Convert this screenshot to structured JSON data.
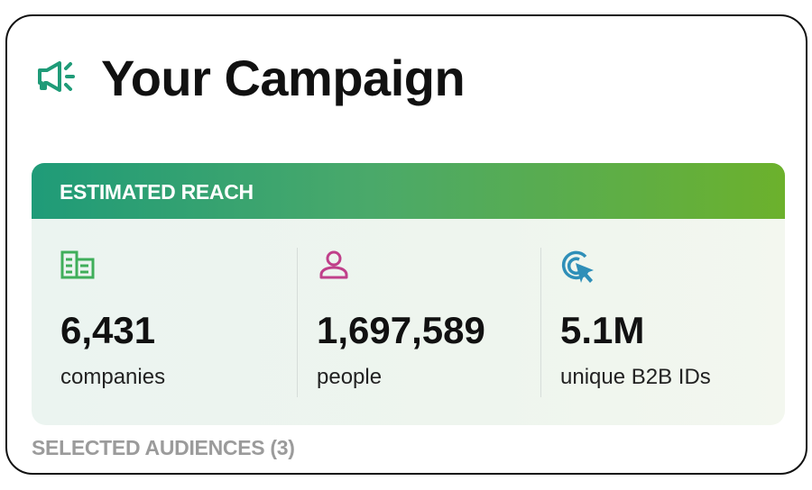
{
  "header": {
    "title": "Your Campaign"
  },
  "reach": {
    "heading": "ESTIMATED REACH",
    "stats": [
      {
        "value": "6,431",
        "label": "companies"
      },
      {
        "value": "1,697,589",
        "label": "people"
      },
      {
        "value": "5.1M",
        "label": "unique B2B IDs"
      }
    ]
  },
  "audiences": {
    "heading": "SELECTED AUDIENCES (3)"
  }
}
